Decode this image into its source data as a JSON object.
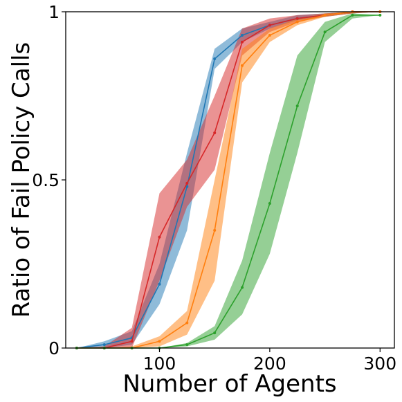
{
  "chart_data": {
    "type": "line",
    "xlabel": "Number of Agents",
    "ylabel": "Ratio of Fail Policy Calls",
    "xlim": [
      15,
      313
    ],
    "ylim": [
      0,
      1
    ],
    "xticks": [
      100,
      200,
      300
    ],
    "xtick_labels": [
      "100",
      "200",
      "300"
    ],
    "yticks": [
      0,
      0.5,
      1
    ],
    "ytick_labels": [
      "0",
      "0.5",
      "1"
    ],
    "grid": false,
    "legend": "none",
    "band_opacity": 0.5,
    "series": [
      {
        "color": "#1f77b4",
        "x": [
          25,
          50,
          75,
          100,
          125,
          150,
          175,
          200,
          225,
          250,
          275,
          300
        ],
        "y": [
          0.0,
          0.01,
          0.03,
          0.19,
          0.48,
          0.86,
          0.93,
          0.96,
          0.98,
          0.99,
          1.0,
          1.0
        ],
        "lower": [
          0.0,
          0.0,
          0.01,
          0.13,
          0.35,
          0.83,
          0.91,
          0.95,
          0.975,
          0.985,
          0.995,
          1.0
        ],
        "upper": [
          0.0,
          0.02,
          0.05,
          0.25,
          0.58,
          0.89,
          0.95,
          0.97,
          0.99,
          0.995,
          1.0,
          1.0
        ]
      },
      {
        "color": "#d62728",
        "x": [
          25,
          50,
          75,
          100,
          125,
          150,
          175,
          200,
          225,
          250,
          275,
          300
        ],
        "y": [
          0.0,
          0.0,
          0.02,
          0.33,
          0.49,
          0.64,
          0.91,
          0.96,
          0.98,
          0.99,
          1.0,
          1.0
        ],
        "lower": [
          0.0,
          0.0,
          0.0,
          0.2,
          0.42,
          0.53,
          0.87,
          0.94,
          0.97,
          0.985,
          0.995,
          1.0
        ],
        "upper": [
          0.0,
          0.005,
          0.06,
          0.46,
          0.56,
          0.75,
          0.95,
          0.98,
          0.99,
          0.995,
          1.0,
          1.0
        ]
      },
      {
        "color": "#ff7f0e",
        "x": [
          25,
          50,
          75,
          100,
          125,
          150,
          175,
          200,
          225,
          250,
          275,
          300
        ],
        "y": [
          0.0,
          0.0,
          0.0,
          0.02,
          0.075,
          0.35,
          0.84,
          0.93,
          0.97,
          0.99,
          1.0,
          1.0
        ],
        "lower": [
          0.0,
          0.0,
          0.0,
          0.005,
          0.04,
          0.2,
          0.79,
          0.91,
          0.96,
          0.985,
          0.995,
          1.0
        ],
        "upper": [
          0.0,
          0.0,
          0.005,
          0.035,
          0.11,
          0.5,
          0.89,
          0.95,
          0.98,
          0.995,
          1.0,
          1.0
        ]
      },
      {
        "color": "#2ca02c",
        "x": [
          25,
          50,
          75,
          100,
          125,
          150,
          175,
          200,
          225,
          250,
          275,
          300
        ],
        "y": [
          0.0,
          0.0,
          0.0,
          0.0,
          0.01,
          0.045,
          0.18,
          0.43,
          0.72,
          0.94,
          0.99,
          0.99
        ],
        "lower": [
          0.0,
          0.0,
          0.0,
          0.0,
          0.005,
          0.025,
          0.1,
          0.28,
          0.58,
          0.91,
          0.98,
          0.99
        ],
        "upper": [
          0.0,
          0.0,
          0.0,
          0.0,
          0.015,
          0.065,
          0.26,
          0.58,
          0.87,
          0.97,
          0.995,
          0.99
        ]
      }
    ]
  }
}
